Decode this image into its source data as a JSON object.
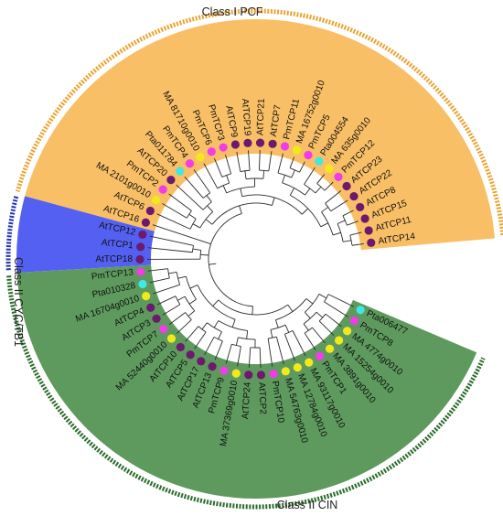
{
  "tree": {
    "classes": [
      {
        "name": "Class I PCF",
        "color": "#f9bf66",
        "band_color": "#e9a534"
      },
      {
        "name": "Class II CYC/TB1",
        "color": "#5460f2",
        "band_color": "#2233b0"
      },
      {
        "name": "Class II CIN",
        "color": "#5e9a5e",
        "band_color": "#2c6b2c"
      }
    ],
    "species_colors": {
      "At": "#6b1a6e",
      "Pm": "#f23ce8",
      "MA": "#f2e91a",
      "Pta": "#3ee8e3"
    },
    "leaves": [
      {
        "label": "AtTCP14",
        "species": "At"
      },
      {
        "label": "AtTCP11",
        "species": "At"
      },
      {
        "label": "AtTCP15",
        "species": "At"
      },
      {
        "label": "AtTCP8",
        "species": "At"
      },
      {
        "label": "AtTCP22",
        "species": "At"
      },
      {
        "label": "AtTCP23",
        "species": "At"
      },
      {
        "label": "PmTCP12",
        "species": "Pm"
      },
      {
        "label": "MA 635g0010",
        "species": "MA"
      },
      {
        "label": "Pta004554",
        "species": "Pta"
      },
      {
        "label": "PmTCP5",
        "species": "Pm"
      },
      {
        "label": "MA 16752g0010",
        "species": "MA"
      },
      {
        "label": "PmTCP11",
        "species": "Pm"
      },
      {
        "label": "AtTCP7",
        "species": "At"
      },
      {
        "label": "AtTCP21",
        "species": "At"
      },
      {
        "label": "AtTCP19",
        "species": "At"
      },
      {
        "label": "AtTCP9",
        "species": "At"
      },
      {
        "label": "PmTCP3",
        "species": "Pm"
      },
      {
        "label": "PmTCP6",
        "species": "Pm"
      },
      {
        "label": "MA 81710g0010",
        "species": "MA"
      },
      {
        "label": "PmTCP4",
        "species": "Pm"
      },
      {
        "label": "Pta011784",
        "species": "Pta"
      },
      {
        "label": "AtTCP20",
        "species": "At"
      },
      {
        "label": "PmTCP2",
        "species": "Pm"
      },
      {
        "label": "MA 2101g0010",
        "species": "MA"
      },
      {
        "label": "AtTCP6",
        "species": "At"
      },
      {
        "label": "AtTCP16",
        "species": "At"
      },
      {
        "label": "AtTCP12",
        "species": "At"
      },
      {
        "label": "AtTCP1",
        "species": "At"
      },
      {
        "label": "AtTCP18",
        "species": "At"
      },
      {
        "label": "PmTCP13",
        "species": "Pm"
      },
      {
        "label": "Pta010328",
        "species": "Pta"
      },
      {
        "label": "MA 16704g0010",
        "species": "MA"
      },
      {
        "label": "AtTCP4",
        "species": "At"
      },
      {
        "label": "AtTCP3",
        "species": "At"
      },
      {
        "label": "PmTCP7",
        "species": "Pm"
      },
      {
        "label": "MA 52440g0010",
        "species": "MA"
      },
      {
        "label": "AtTCP10",
        "species": "At"
      },
      {
        "label": "AtTCP5",
        "species": "At"
      },
      {
        "label": "AtTCP17",
        "species": "At"
      },
      {
        "label": "AtTCP13",
        "species": "At"
      },
      {
        "label": "PmTCP9",
        "species": "Pm"
      },
      {
        "label": "MA 37369g0010",
        "species": "MA"
      },
      {
        "label": "AtTCP24",
        "species": "At"
      },
      {
        "label": "AtTCP2",
        "species": "At"
      },
      {
        "label": "PmTCP10",
        "species": "Pm"
      },
      {
        "label": "MA 54763g0010",
        "species": "MA"
      },
      {
        "label": "MA 12784g0010",
        "species": "MA"
      },
      {
        "label": "MA 93117g0010",
        "species": "MA"
      },
      {
        "label": "PmTCP1",
        "species": "Pm"
      },
      {
        "label": "MA 3891g0010",
        "species": "MA"
      },
      {
        "label": "MA 15254g0010",
        "species": "MA"
      },
      {
        "label": "MA 4774g0010",
        "species": "MA"
      },
      {
        "label": "PmTCP8",
        "species": "Pm"
      },
      {
        "label": "Pta006477",
        "species": "Pta"
      }
    ]
  }
}
